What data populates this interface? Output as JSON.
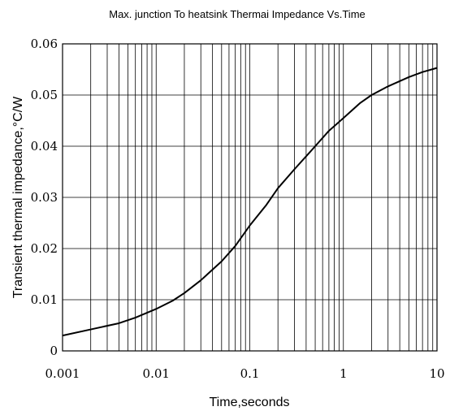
{
  "chart_data": {
    "type": "line",
    "title": "Max. junction To heatsink Thermai Impedance Vs.Time",
    "xlabel": "Time,seconds",
    "ylabel": "Transient thermal impedance,°C/W",
    "x_scale": "log",
    "xlim": [
      0.001,
      10
    ],
    "ylim": [
      0,
      0.06
    ],
    "grid": true,
    "x_ticks": [
      {
        "value": 0.001,
        "label": "0.001"
      },
      {
        "value": 0.01,
        "label": "0.01"
      },
      {
        "value": 0.1,
        "label": "0.1"
      },
      {
        "value": 1,
        "label": "1"
      },
      {
        "value": 10,
        "label": "10"
      }
    ],
    "y_ticks": [
      {
        "value": 0,
        "label": "0"
      },
      {
        "value": 0.01,
        "label": "0.01"
      },
      {
        "value": 0.02,
        "label": "0.02"
      },
      {
        "value": 0.03,
        "label": "0.03"
      },
      {
        "value": 0.04,
        "label": "0.04"
      },
      {
        "value": 0.05,
        "label": "0.05"
      },
      {
        "value": 0.06,
        "label": "0.06"
      }
    ],
    "series": [
      {
        "name": "",
        "color": "#000000",
        "x": [
          0.001,
          0.002,
          0.004,
          0.006,
          0.01,
          0.015,
          0.02,
          0.03,
          0.05,
          0.07,
          0.1,
          0.15,
          0.2,
          0.3,
          0.5,
          0.7,
          1,
          1.5,
          2,
          3,
          5,
          7,
          10
        ],
        "y": [
          0.003,
          0.0042,
          0.0054,
          0.0065,
          0.0082,
          0.0098,
          0.0113,
          0.0138,
          0.0175,
          0.0205,
          0.0245,
          0.0285,
          0.0318,
          0.0355,
          0.04,
          0.043,
          0.0455,
          0.0484,
          0.05,
          0.0517,
          0.0535,
          0.0545,
          0.0553
        ]
      }
    ]
  }
}
